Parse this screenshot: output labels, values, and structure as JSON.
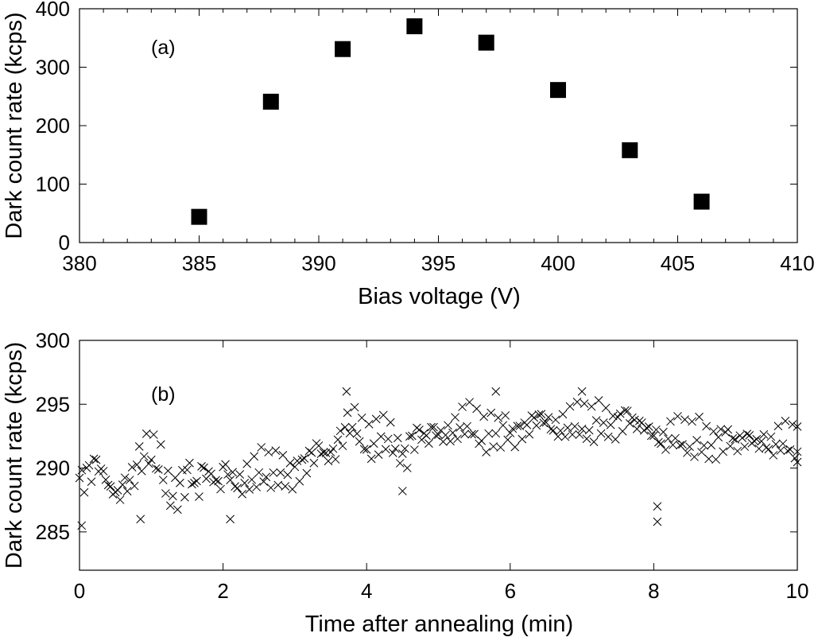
{
  "chart_data": [
    {
      "id": "a",
      "type": "scatter",
      "panel_label": "(a)",
      "title": "",
      "xlabel": "Bias voltage (V)",
      "ylabel": "Dark count rate (kcps)",
      "xlim": [
        380,
        410
      ],
      "ylim": [
        0,
        400
      ],
      "xticks": [
        380,
        385,
        390,
        395,
        400,
        405,
        410
      ],
      "yticks": [
        0,
        100,
        200,
        300,
        400
      ],
      "xminor_step": 1,
      "marker": "square",
      "grid": false,
      "x": [
        385,
        388,
        391,
        394,
        397,
        400,
        403,
        406
      ],
      "y": [
        44,
        241,
        331,
        370,
        342,
        261,
        158,
        70
      ]
    },
    {
      "id": "b",
      "type": "scatter",
      "panel_label": "(b)",
      "title": "",
      "xlabel": "Time after annealing (min)",
      "ylabel": "Dark count rate (kcps)",
      "xlim": [
        0,
        10
      ],
      "ylim": [
        282,
        300
      ],
      "xticks": [
        0,
        2,
        4,
        6,
        8,
        10
      ],
      "yticks": [
        285,
        290,
        295,
        300
      ],
      "marker": "x",
      "grid": false,
      "x": [
        0.0,
        0.1,
        0.2,
        0.3,
        0.4,
        0.5,
        0.6,
        0.7,
        0.8,
        0.9,
        1.0,
        1.1,
        1.2,
        1.3,
        1.4,
        1.5,
        1.6,
        1.7,
        1.8,
        1.9,
        2.0,
        2.1,
        2.2,
        2.3,
        2.4,
        2.5,
        2.6,
        2.7,
        2.8,
        2.9,
        3.0,
        3.1,
        3.2,
        3.3,
        3.4,
        3.5,
        3.6,
        3.7,
        3.8,
        3.9,
        4.0,
        4.1,
        4.2,
        4.3,
        4.4,
        4.5,
        4.6,
        4.7,
        4.8,
        4.9,
        5.0,
        5.1,
        5.2,
        5.3,
        5.4,
        5.5,
        5.6,
        5.7,
        5.8,
        5.9,
        6.0,
        6.1,
        6.2,
        6.3,
        6.4,
        6.5,
        6.6,
        6.7,
        6.8,
        6.9,
        7.0,
        7.1,
        7.2,
        7.3,
        7.4,
        7.5,
        7.6,
        7.7,
        7.8,
        7.9,
        8.0,
        8.1,
        8.2,
        8.3,
        8.4,
        8.5,
        8.6,
        8.7,
        8.8,
        8.9,
        9.0,
        9.1,
        9.2,
        9.3,
        9.4,
        9.5,
        9.6,
        9.7,
        9.8,
        9.9,
        10.0
      ],
      "y": [
        289.0,
        289.6,
        290.2,
        289.4,
        288.2,
        287.8,
        288.6,
        289.2,
        290.6,
        291.4,
        291.2,
        290.4,
        288.4,
        288.0,
        288.8,
        289.6,
        288.4,
        289.6,
        289.2,
        288.6,
        289.8,
        289.0,
        288.6,
        289.2,
        289.6,
        290.2,
        289.8,
        290.0,
        289.8,
        289.4,
        289.8,
        290.2,
        290.8,
        291.4,
        290.8,
        291.0,
        292.2,
        293.4,
        293.6,
        292.6,
        292.0,
        292.4,
        292.8,
        292.4,
        291.4,
        290.8,
        292.0,
        292.6,
        292.2,
        292.8,
        292.4,
        292.6,
        293.0,
        293.6,
        293.8,
        293.2,
        292.6,
        293.0,
        292.8,
        293.2,
        292.4,
        292.8,
        293.0,
        293.6,
        293.8,
        293.4,
        293.0,
        293.2,
        293.6,
        293.8,
        293.6,
        293.4,
        294.0,
        293.6,
        293.2,
        293.6,
        294.0,
        293.4,
        293.2,
        292.8,
        292.4,
        292.0,
        292.6,
        292.8,
        292.4,
        292.2,
        292.6,
        292.0,
        291.8,
        292.2,
        292.4,
        291.8,
        292.0,
        292.2,
        291.8,
        292.0,
        291.6,
        292.2,
        292.4,
        292.0,
        291.8
      ],
      "outliers": [
        {
          "x": 0.03,
          "y": 285.5
        },
        {
          "x": 0.85,
          "y": 286.0
        },
        {
          "x": 2.1,
          "y": 286.0
        },
        {
          "x": 4.5,
          "y": 288.2
        },
        {
          "x": 8.05,
          "y": 287.0
        },
        {
          "x": 8.05,
          "y": 285.8
        },
        {
          "x": 3.72,
          "y": 296.0
        },
        {
          "x": 5.8,
          "y": 296.0
        },
        {
          "x": 7.0,
          "y": 296.0
        }
      ]
    }
  ]
}
